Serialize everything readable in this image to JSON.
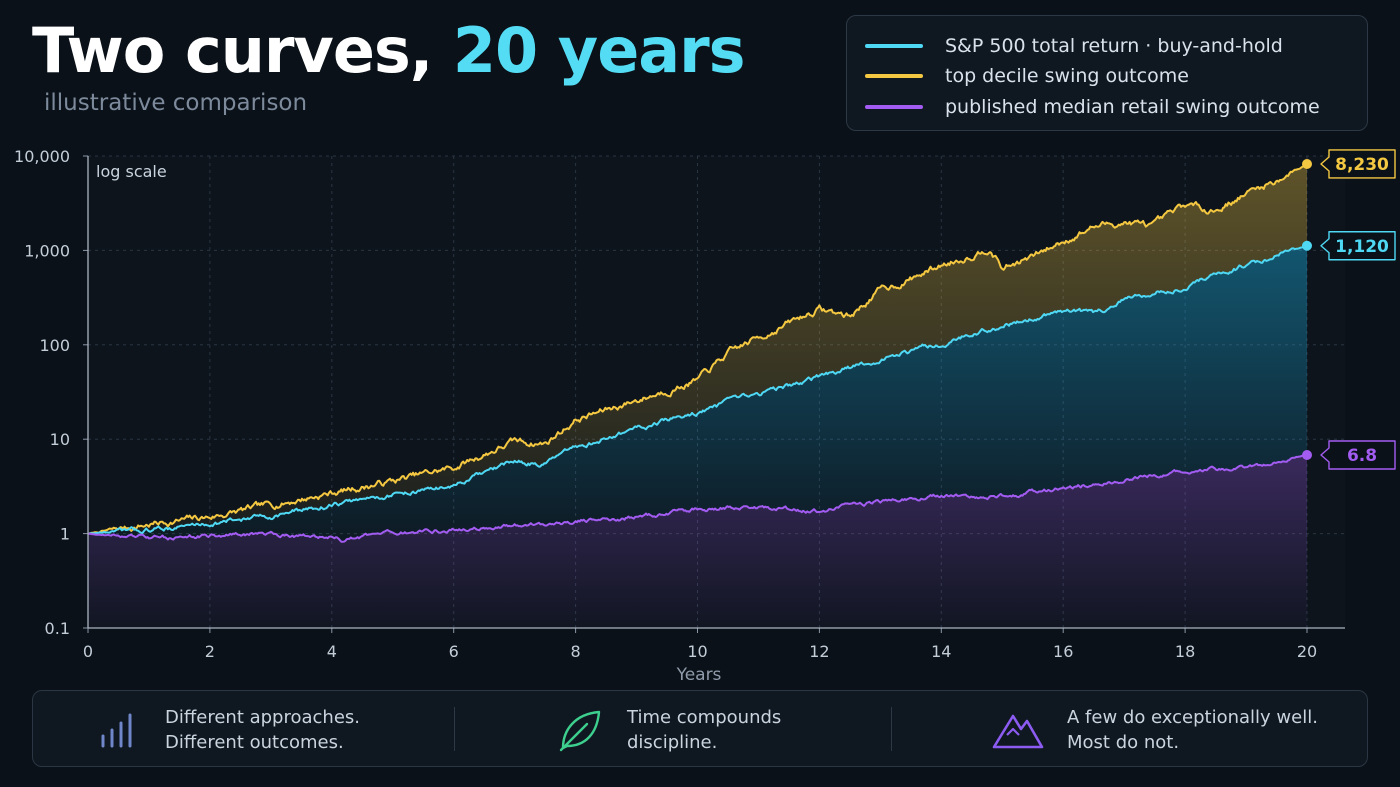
{
  "header": {
    "title_main": "Two curves,",
    "title_accent": "20 years",
    "subtitle": "illustrative comparison"
  },
  "legend": [
    {
      "label": "S&P 500 total return · buy-and-hold",
      "color": "#4fd8f4"
    },
    {
      "label": "top decile swing outcome",
      "color": "#f5c842"
    },
    {
      "label": "published median retail swing outcome",
      "color": "#a35cf2"
    }
  ],
  "chart_data": {
    "type": "line",
    "title": "Two curves, 20 years",
    "subtitle": "illustrative comparison",
    "xlabel": "Years",
    "ylabel": "",
    "scale_note": "log scale",
    "yscale": "log",
    "xlim": [
      0,
      20
    ],
    "ylim": [
      0.1,
      10000
    ],
    "x_ticks": [
      0,
      2,
      4,
      6,
      8,
      10,
      12,
      14,
      16,
      18,
      20
    ],
    "y_ticks": [
      {
        "value": 0.1,
        "label": "0.1"
      },
      {
        "value": 1,
        "label": "1"
      },
      {
        "value": 10,
        "label": "10"
      },
      {
        "value": 100,
        "label": "100"
      },
      {
        "value": 1000,
        "label": "1,000"
      },
      {
        "value": 10000,
        "label": "10,000"
      }
    ],
    "grid": true,
    "series": [
      {
        "name": "top decile swing outcome",
        "color": "#f5c842",
        "end_label": "8,230",
        "x": [
          0,
          1,
          2,
          3,
          4,
          5,
          6,
          7,
          7.5,
          8,
          9,
          10,
          10.5,
          11,
          11.5,
          12,
          12.5,
          13,
          13.5,
          14,
          14.5,
          14.8,
          15,
          15.5,
          16,
          16.5,
          17,
          17.5,
          18,
          18.5,
          19,
          19.5,
          20
        ],
        "y": [
          1,
          1.25,
          1.5,
          2.0,
          2.7,
          3.6,
          5.0,
          9.5,
          9.0,
          16,
          26,
          42,
          80,
          120,
          170,
          240,
          200,
          380,
          500,
          700,
          900,
          1100,
          650,
          850,
          1250,
          1800,
          2000,
          1800,
          3000,
          2700,
          4000,
          5500,
          8230
        ]
      },
      {
        "name": "S&P 500 total return · buy-and-hold",
        "color": "#4fd8f4",
        "end_label": "1,120",
        "x": [
          0,
          1,
          2,
          3,
          4,
          5,
          6,
          7,
          7.5,
          8,
          9,
          10,
          11,
          12,
          13,
          14,
          15,
          16,
          16.5,
          17,
          18,
          19,
          20
        ],
        "y": [
          1,
          1.1,
          1.28,
          1.55,
          2.0,
          2.6,
          3.2,
          5.8,
          5.5,
          8.0,
          13,
          19,
          30,
          45,
          70,
          105,
          160,
          230,
          210,
          300,
          420,
          700,
          1120
        ]
      },
      {
        "name": "published median retail swing outcome",
        "color": "#a35cf2",
        "end_label": "6.8",
        "x": [
          0,
          1,
          2,
          3,
          4,
          4.2,
          5,
          6,
          7,
          8,
          9,
          10,
          11,
          12,
          13,
          14,
          15,
          16,
          17,
          18,
          19,
          20
        ],
        "y": [
          1,
          0.9,
          0.95,
          1.0,
          0.9,
          0.85,
          1.0,
          1.1,
          1.2,
          1.35,
          1.5,
          1.8,
          1.9,
          1.7,
          2.2,
          2.5,
          2.5,
          3.0,
          3.8,
          4.5,
          5.0,
          6.8
        ]
      }
    ]
  },
  "footer": [
    {
      "line1": "Different approaches.",
      "line2": "Different outcomes.",
      "icon": "bars-icon"
    },
    {
      "line1": "Time compounds",
      "line2": "discipline.",
      "icon": "leaf-icon"
    },
    {
      "line1": "A few do exceptionally well.",
      "line2": "Most do not.",
      "icon": "mountain-icon"
    }
  ]
}
